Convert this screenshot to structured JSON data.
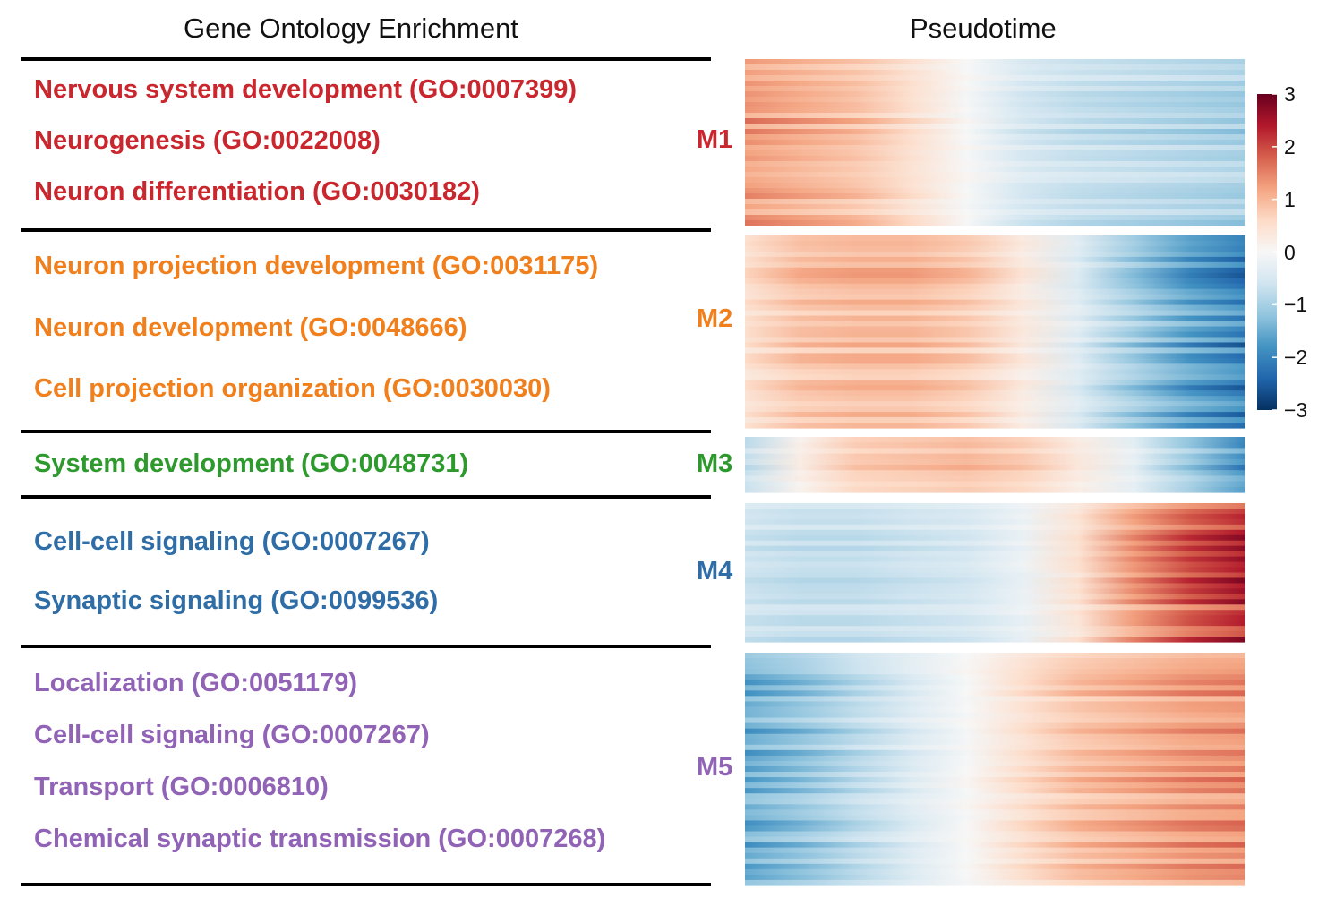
{
  "headers": {
    "left": "Gene Ontology Enrichment",
    "right": "Pseudotime"
  },
  "modules": [
    {
      "label": "M1",
      "color": "#c9262d",
      "terms": [
        "Nervous system development (GO:0007399)",
        "Neurogenesis (GO:0022008)",
        "Neuron differentiation (GO:0030182)"
      ]
    },
    {
      "label": "M2",
      "color": "#f07f1c",
      "terms": [
        "Neuron projection development (GO:0031175)",
        "Neuron development (GO:0048666)",
        "Cell projection organization (GO:0030030)"
      ]
    },
    {
      "label": "M3",
      "color": "#2e9a2e",
      "terms": [
        "System development (GO:0048731)"
      ]
    },
    {
      "label": "M4",
      "color": "#2f6da6",
      "terms": [
        "Cell-cell signaling (GO:0007267)",
        "Synaptic signaling (GO:0099536)"
      ]
    },
    {
      "label": "M5",
      "color": "#9163b6",
      "terms": [
        "Localization (GO:0051179)",
        "Cell-cell signaling (GO:0007267)",
        "Transport (GO:0006810)",
        "Chemical synaptic transmission (GO:0007268)"
      ]
    }
  ],
  "chart_data": {
    "type": "heatmap",
    "title": "Pseudotime",
    "xlabel": "",
    "ylabel": "",
    "color_scale": {
      "min": -3,
      "max": 3,
      "ticks": [
        "3",
        "2",
        "1",
        "0",
        "−1",
        "−2",
        "−3"
      ],
      "colors": [
        "#053061",
        "#2166ac",
        "#4393c3",
        "#92c5de",
        "#d1e5f0",
        "#f7f7f7",
        "#fddbc7",
        "#f4a582",
        "#d6604d",
        "#b2182b",
        "#67001f"
      ]
    },
    "modules": [
      {
        "name": "M1",
        "profile": [
          1.3,
          1.1,
          0.9,
          0.5,
          0.0,
          -0.5,
          -0.7,
          -0.8,
          -0.9,
          -1.0
        ]
      },
      {
        "name": "M2",
        "profile": [
          0.5,
          0.9,
          1.0,
          1.0,
          0.8,
          0.3,
          -0.4,
          -1.1,
          -1.7,
          -2.1
        ]
      },
      {
        "name": "M3",
        "profile": [
          -0.8,
          0.2,
          0.8,
          0.9,
          1.0,
          0.8,
          0.3,
          -0.3,
          -1.2,
          -2.0
        ]
      },
      {
        "name": "M4",
        "profile": [
          -0.6,
          -0.7,
          -0.7,
          -0.6,
          -0.5,
          -0.2,
          0.4,
          1.2,
          1.8,
          2.2
        ]
      },
      {
        "name": "M5",
        "profile": [
          -1.5,
          -1.2,
          -0.8,
          -0.4,
          0.0,
          0.5,
          0.9,
          1.1,
          1.3,
          1.4
        ]
      }
    ]
  }
}
